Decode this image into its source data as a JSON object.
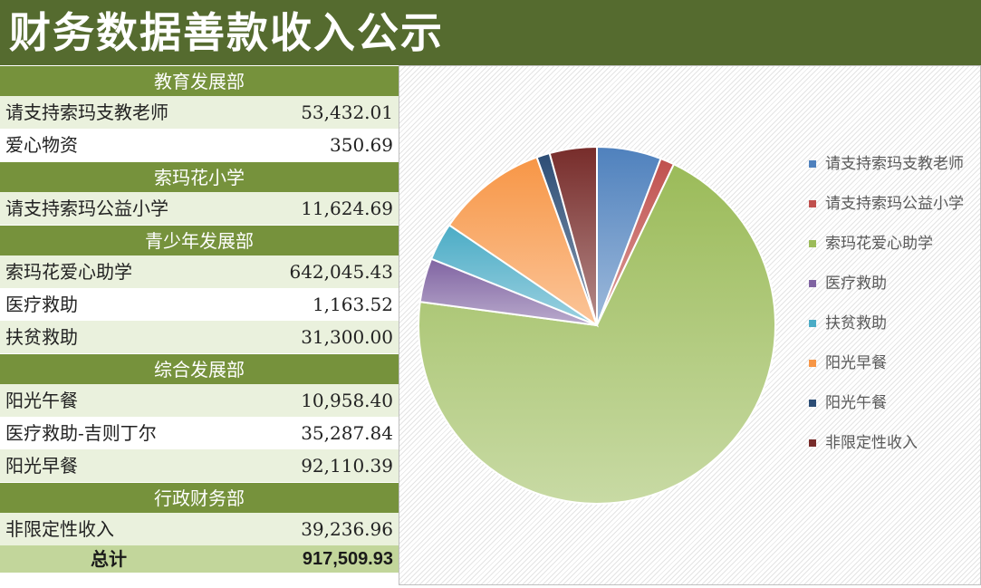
{
  "title": "财务数据善款收入公示",
  "sections": [
    {
      "dept": "教育发展部",
      "rows": [
        {
          "name": "请支持索玛支教老师",
          "amount": "53,432.01"
        },
        {
          "name": "爱心物资",
          "amount": "350.69"
        }
      ]
    },
    {
      "dept": "索玛花小学",
      "rows": [
        {
          "name": "请支持索玛公益小学",
          "amount": "11,624.69"
        }
      ]
    },
    {
      "dept": "青少年发展部",
      "rows": [
        {
          "name": "索玛花爱心助学",
          "amount": "642,045.43"
        },
        {
          "name": "医疗救助",
          "amount": "1,163.52"
        },
        {
          "name": "扶贫救助",
          "amount": "31,300.00"
        }
      ]
    },
    {
      "dept": "综合发展部",
      "rows": [
        {
          "name": "阳光午餐",
          "amount": "10,958.40"
        },
        {
          "name": "医疗救助-吉则丁尔",
          "amount": "35,287.84"
        },
        {
          "name": "阳光早餐",
          "amount": "92,110.39"
        }
      ]
    },
    {
      "dept": "行政财务部",
      "rows": [
        {
          "name": "非限定性收入",
          "amount": "39,236.96"
        }
      ]
    }
  ],
  "total": {
    "label": "总计",
    "amount": "917,509.93"
  },
  "colors": {
    "title_bg": "#556b2f",
    "dept_bg": "#76923c",
    "row_alt": "#eaf1dd",
    "total_bg": "#c2d69b"
  },
  "chart_data": {
    "type": "pie",
    "legend_position": "right",
    "categories": [
      "请支持索玛支教老师",
      "请支持索玛公益小学",
      "索玛花爱心助学",
      "医疗救助",
      "扶贫救助",
      "阳光早餐",
      "阳光午餐",
      "非限定性收入"
    ],
    "values": [
      53432.01,
      11624.69,
      642045.43,
      36451.36,
      31300.0,
      92110.39,
      10958.4,
      39236.96
    ],
    "colors": [
      "#4f81bd",
      "#c0504d",
      "#9bbb59",
      "#8064a2",
      "#4bacc6",
      "#f79646",
      "#2c4d75",
      "#772c2a"
    ]
  }
}
